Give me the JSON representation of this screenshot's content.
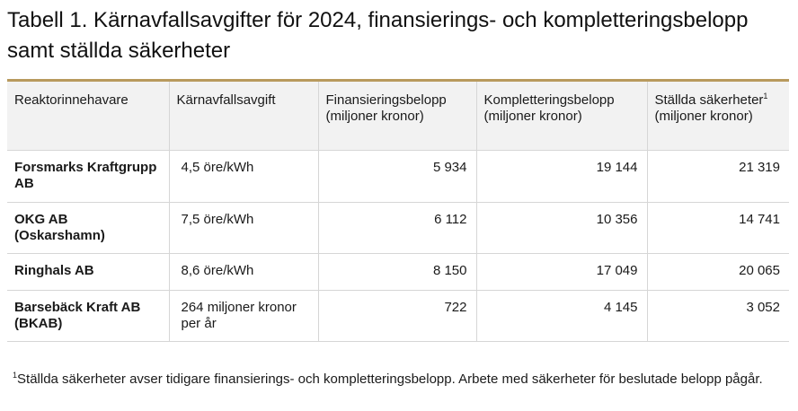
{
  "title": "Tabell 1. Kärnavfallsavgifter för 2024, finansierings- och kompletteringsbelopp samt ställda säkerheter",
  "table": {
    "headers": {
      "owner": "Reaktorinnehavare",
      "fee": "Kärnavfallsavgift",
      "financing": "Finansieringsbelopp (miljoner kronor)",
      "completion": "Kompletteringsbelopp (miljoner kronor)",
      "security_a": "Ställda säkerheter",
      "security_sup": "1",
      "security_b": " (miljoner kronor)"
    },
    "rows": [
      {
        "owner": "Forsmarks Kraftgrupp AB",
        "fee": "4,5 öre/kWh",
        "financing": "5 934",
        "completion": "19 144",
        "security": "21 319"
      },
      {
        "owner": "OKG AB (Oskarshamn)",
        "fee": "7,5 öre/kWh",
        "financing": "6 112",
        "completion": "10 356",
        "security": "14 741"
      },
      {
        "owner": "Ringhals AB",
        "fee": "8,6 öre/kWh",
        "financing": "8 150",
        "completion": "17 049",
        "security": "20 065"
      },
      {
        "owner": "Barsebäck Kraft AB (BKAB)",
        "fee": "264 miljoner kronor per år",
        "financing": "722",
        "completion": "4 145",
        "security": "3 052"
      }
    ]
  },
  "footnote": {
    "marker": "1",
    "text": "Ställda säkerheter avser tidigare finansierings- och kompletteringsbelopp. Arbete med säkerheter för beslutade belopp pågår."
  }
}
